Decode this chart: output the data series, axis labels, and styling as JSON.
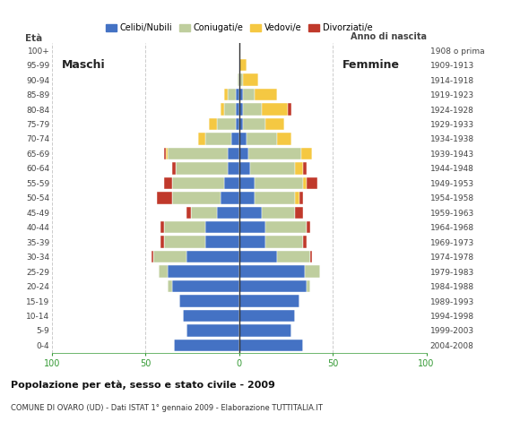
{
  "age_groups": [
    "0-4",
    "5-9",
    "10-14",
    "15-19",
    "20-24",
    "25-29",
    "30-34",
    "35-39",
    "40-44",
    "45-49",
    "50-54",
    "55-59",
    "60-64",
    "65-69",
    "70-74",
    "75-79",
    "80-84",
    "85-89",
    "90-94",
    "95-99",
    "100+"
  ],
  "birth_years": [
    "2004-2008",
    "1999-2003",
    "1994-1998",
    "1989-1993",
    "1984-1988",
    "1979-1983",
    "1974-1978",
    "1969-1973",
    "1964-1968",
    "1959-1963",
    "1954-1958",
    "1949-1953",
    "1944-1948",
    "1939-1943",
    "1934-1938",
    "1929-1933",
    "1924-1928",
    "1919-1923",
    "1914-1918",
    "1909-1913",
    "1908 o prima"
  ],
  "males": {
    "celibi": [
      35,
      28,
      30,
      32,
      36,
      38,
      28,
      18,
      18,
      12,
      10,
      8,
      6,
      6,
      4,
      2,
      2,
      2,
      0,
      0,
      0
    ],
    "coniugati": [
      0,
      0,
      0,
      0,
      2,
      5,
      18,
      22,
      22,
      14,
      26,
      28,
      28,
      32,
      14,
      10,
      6,
      4,
      1,
      0,
      0
    ],
    "vedovi": [
      0,
      0,
      0,
      0,
      0,
      0,
      0,
      0,
      0,
      0,
      0,
      0,
      0,
      1,
      4,
      4,
      2,
      2,
      0,
      0,
      0
    ],
    "divorziati": [
      0,
      0,
      0,
      0,
      0,
      0,
      1,
      2,
      2,
      2,
      8,
      4,
      2,
      1,
      0,
      0,
      0,
      0,
      0,
      0,
      0
    ]
  },
  "females": {
    "nubili": [
      34,
      28,
      30,
      32,
      36,
      35,
      20,
      14,
      14,
      12,
      8,
      8,
      6,
      5,
      4,
      2,
      2,
      2,
      0,
      0,
      0
    ],
    "coniugate": [
      0,
      0,
      0,
      0,
      2,
      8,
      18,
      20,
      22,
      18,
      22,
      26,
      24,
      28,
      16,
      12,
      10,
      6,
      2,
      0,
      0
    ],
    "vedove": [
      0,
      0,
      0,
      0,
      0,
      0,
      0,
      0,
      0,
      0,
      2,
      2,
      4,
      6,
      8,
      10,
      14,
      12,
      8,
      4,
      0
    ],
    "divorziate": [
      0,
      0,
      0,
      0,
      0,
      0,
      1,
      2,
      2,
      4,
      2,
      6,
      2,
      0,
      0,
      0,
      2,
      0,
      0,
      0,
      0
    ]
  },
  "colors": {
    "celibi": "#4472C4",
    "coniugati": "#BFCE9E",
    "vedovi": "#F5C842",
    "divorziati": "#C0392B"
  },
  "title": "Popolazione per età, sesso e stato civile - 2009",
  "subtitle": "COMUNE DI OVARO (UD) - Dati ISTAT 1° gennaio 2009 - Elaborazione TUTTITALIA.IT",
  "xlim": 100,
  "label_maschi": "Maschi",
  "label_femmine": "Femmine",
  "label_eta": "Età",
  "label_anno": "Anno di nascita",
  "bg_color": "#FFFFFF",
  "grid_color": "#CCCCCC",
  "xtick_color": "#339933"
}
